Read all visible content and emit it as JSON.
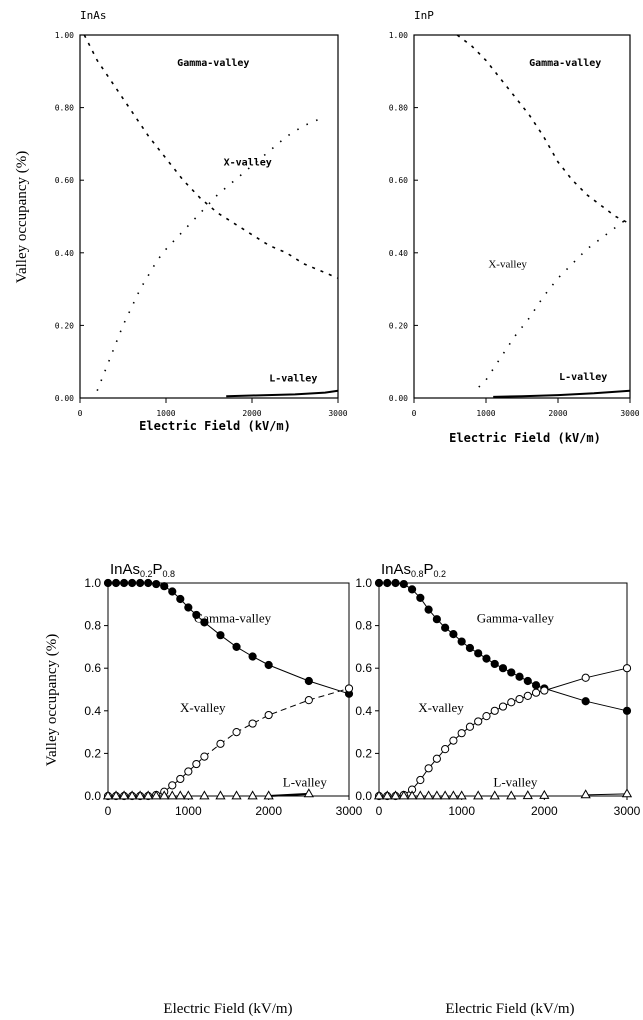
{
  "chart_data": [
    {
      "type": "line",
      "title": "InAs",
      "xlabel": "Electric Field (kV/m)",
      "ylabel": "Valley occupancy (%)",
      "xlim": [
        0,
        3000
      ],
      "ylim": [
        0,
        1
      ],
      "xticks": [
        0,
        1000,
        2000,
        3000
      ],
      "xtick_labels": [
        "0",
        "1000",
        "2000",
        "3000"
      ],
      "yticks": [
        0,
        0.2,
        0.4,
        0.6,
        0.8,
        1.0
      ],
      "ytick_labels": [
        "0.00",
        "0.20",
        "0.40",
        "0.60",
        "0.80",
        "1.00"
      ],
      "grid": false,
      "series": [
        {
          "name": "Gamma-valley",
          "style": "dashed",
          "x": [
            50,
            200,
            400,
            600,
            800,
            1000,
            1200,
            1400,
            1600,
            1800,
            2000,
            2200,
            2400,
            2600,
            2800,
            3000
          ],
          "y": [
            1.0,
            0.93,
            0.86,
            0.79,
            0.72,
            0.66,
            0.6,
            0.55,
            0.51,
            0.48,
            0.45,
            0.42,
            0.4,
            0.37,
            0.35,
            0.33
          ]
        },
        {
          "name": "X-valley",
          "style": "dotted",
          "x": [
            200,
            300,
            400,
            500,
            600,
            700,
            800,
            900,
            1000,
            1200,
            1400,
            1600,
            1800,
            2000,
            2200,
            2400,
            2600,
            2800
          ],
          "y": [
            0.02,
            0.08,
            0.14,
            0.2,
            0.25,
            0.3,
            0.34,
            0.38,
            0.41,
            0.46,
            0.51,
            0.56,
            0.6,
            0.64,
            0.68,
            0.72,
            0.75,
            0.77
          ]
        },
        {
          "name": "L-valley",
          "style": "solid",
          "x": [
            1700,
            2000,
            2500,
            2850,
            3000
          ],
          "y": [
            0.005,
            0.007,
            0.01,
            0.015,
            0.02
          ]
        }
      ],
      "annotations": [
        {
          "text": "Gamma-valley",
          "x": 1550,
          "y": 0.915
        },
        {
          "text": "X-valley",
          "x": 1950,
          "y": 0.64
        },
        {
          "text": "L-valley",
          "x": 2480,
          "y": 0.045
        }
      ]
    },
    {
      "type": "line",
      "title": "InP",
      "xlabel": "Electric Field (kV/m)",
      "ylabel": "",
      "xlim": [
        0,
        3000
      ],
      "ylim": [
        0,
        1
      ],
      "xticks": [
        0,
        1000,
        2000,
        3000
      ],
      "xtick_labels": [
        "0",
        "1000",
        "2000",
        "3000"
      ],
      "yticks": [
        0,
        0.2,
        0.4,
        0.6,
        0.8,
        1.0
      ],
      "ytick_labels": [
        "0.00",
        "0.20",
        "0.40",
        "0.60",
        "0.80",
        "1.00"
      ],
      "grid": false,
      "series": [
        {
          "name": "Gamma-valley",
          "style": "dashed",
          "x": [
            600,
            800,
            1000,
            1200,
            1400,
            1600,
            1800,
            2000,
            2200,
            2400,
            2600,
            2800,
            3000
          ],
          "y": [
            1.0,
            0.97,
            0.93,
            0.88,
            0.83,
            0.78,
            0.72,
            0.65,
            0.6,
            0.56,
            0.53,
            0.5,
            0.48
          ]
        },
        {
          "name": "X-valley",
          "style": "dotted",
          "x": [
            900,
            1000,
            1200,
            1400,
            1600,
            1800,
            2000,
            2200,
            2400,
            2600,
            2800,
            3000
          ],
          "y": [
            0.03,
            0.05,
            0.11,
            0.17,
            0.22,
            0.28,
            0.33,
            0.37,
            0.41,
            0.44,
            0.47,
            0.5
          ]
        },
        {
          "name": "L-valley",
          "style": "solid",
          "x": [
            1100,
            1500,
            2000,
            2500,
            3000
          ],
          "y": [
            0.003,
            0.005,
            0.008,
            0.013,
            0.02
          ]
        }
      ],
      "annotations": [
        {
          "text": "Gamma-valley",
          "x": 2100,
          "y": 0.915
        },
        {
          "text": "X-valley",
          "x": 1300,
          "y": 0.36
        },
        {
          "text": "L-valley",
          "x": 2350,
          "y": 0.05
        }
      ]
    },
    {
      "type": "line",
      "title": "InAs",
      "title_sub1": "0.2",
      "title_mid": "P",
      "title_sub2": "0.8",
      "xlabel": "Electric Field (kV/m)",
      "ylabel": "Valley occupancy (%)",
      "xlim": [
        0,
        3000
      ],
      "ylim": [
        0,
        1
      ],
      "xticks": [
        0,
        1000,
        2000,
        3000
      ],
      "xtick_labels": [
        "0",
        "1000",
        "2000",
        "3000"
      ],
      "yticks": [
        0,
        0.2,
        0.4,
        0.6,
        0.8,
        1.0
      ],
      "ytick_labels": [
        "0.0",
        "0.2",
        "0.4",
        "0.6",
        "0.8",
        "1.0"
      ],
      "grid": false,
      "series": [
        {
          "name": "Gamma-valley",
          "marker": "filled-circle",
          "line": "solid",
          "x": [
            0,
            100,
            200,
            300,
            400,
            500,
            600,
            700,
            800,
            900,
            1000,
            1100,
            1200,
            1400,
            1600,
            1800,
            2000,
            2500,
            3000
          ],
          "y": [
            1.0,
            1.0,
            1.0,
            1.0,
            1.0,
            1.0,
            0.995,
            0.985,
            0.96,
            0.925,
            0.885,
            0.85,
            0.815,
            0.755,
            0.7,
            0.655,
            0.615,
            0.54,
            0.48
          ]
        },
        {
          "name": "X-valley",
          "marker": "open-circle",
          "line": "dashed",
          "x": [
            0,
            100,
            200,
            300,
            400,
            500,
            600,
            700,
            800,
            900,
            1000,
            1100,
            1200,
            1400,
            1600,
            1800,
            2000,
            2500,
            3000
          ],
          "y": [
            0,
            0,
            0,
            0,
            0,
            0,
            0.005,
            0.02,
            0.05,
            0.08,
            0.115,
            0.15,
            0.185,
            0.245,
            0.3,
            0.34,
            0.38,
            0.45,
            0.505
          ]
        },
        {
          "name": "L-valley",
          "marker": "open-triangle",
          "line": "solid",
          "x": [
            0,
            100,
            200,
            300,
            400,
            500,
            600,
            700,
            800,
            900,
            1000,
            1200,
            1400,
            1600,
            1800,
            2000,
            2500
          ],
          "y": [
            0,
            0,
            0,
            0,
            0,
            0,
            0,
            0,
            0,
            0,
            0,
            0,
            0,
            0,
            0,
            0,
            0.01
          ]
        }
      ],
      "annotations": [
        {
          "text": "Gamma-valley",
          "x": 1550,
          "y": 0.815
        },
        {
          "text": "X-valley",
          "x": 1180,
          "y": 0.395
        },
        {
          "text": "L-valley",
          "x": 2450,
          "y": 0.045
        }
      ]
    },
    {
      "type": "line",
      "title": "InAs",
      "title_sub1": "0.8",
      "title_mid": "P",
      "title_sub2": "0.2",
      "xlabel": "Electric Field (kV/m)",
      "ylabel": "",
      "xlim": [
        0,
        3000
      ],
      "ylim": [
        0,
        1
      ],
      "xticks": [
        0,
        1000,
        2000,
        3000
      ],
      "xtick_labels": [
        "0",
        "1000",
        "2000",
        "3000"
      ],
      "yticks": [
        0,
        0.2,
        0.4,
        0.6,
        0.8,
        1.0
      ],
      "ytick_labels": [
        "0.0",
        "0.2",
        "0.4",
        "0.6",
        "0.8",
        "1.0"
      ],
      "grid": false,
      "series": [
        {
          "name": "Gamma-valley",
          "marker": "filled-circle",
          "line": "solid",
          "x": [
            0,
            100,
            200,
            300,
            400,
            500,
            600,
            700,
            800,
            900,
            1000,
            1100,
            1200,
            1300,
            1400,
            1500,
            1600,
            1700,
            1800,
            1900,
            2000,
            2500,
            3000
          ],
          "y": [
            1.0,
            1.0,
            1.0,
            0.995,
            0.97,
            0.93,
            0.875,
            0.83,
            0.79,
            0.76,
            0.725,
            0.695,
            0.67,
            0.645,
            0.62,
            0.6,
            0.58,
            0.56,
            0.54,
            0.52,
            0.505,
            0.445,
            0.4
          ]
        },
        {
          "name": "X-valley",
          "marker": "open-circle",
          "line": "solid",
          "x": [
            0,
            100,
            200,
            300,
            400,
            500,
            600,
            700,
            800,
            900,
            1000,
            1100,
            1200,
            1300,
            1400,
            1500,
            1600,
            1700,
            1800,
            1900,
            2000,
            2500,
            3000
          ],
          "y": [
            0,
            0,
            0,
            0.005,
            0.03,
            0.075,
            0.13,
            0.175,
            0.22,
            0.26,
            0.295,
            0.325,
            0.35,
            0.375,
            0.4,
            0.42,
            0.44,
            0.455,
            0.47,
            0.485,
            0.495,
            0.555,
            0.6
          ]
        },
        {
          "name": "L-valley",
          "marker": "open-triangle",
          "line": "solid",
          "x": [
            0,
            100,
            200,
            300,
            400,
            500,
            600,
            700,
            800,
            900,
            1000,
            1200,
            1400,
            1600,
            1800,
            2000,
            2500,
            3000
          ],
          "y": [
            0,
            0,
            0,
            0,
            0,
            0,
            0,
            0,
            0,
            0,
            0,
            0,
            0,
            0,
            0.001,
            0.002,
            0.005,
            0.01
          ]
        }
      ],
      "annotations": [
        {
          "text": "Gamma-valley",
          "x": 1650,
          "y": 0.815
        },
        {
          "text": "X-valley",
          "x": 750,
          "y": 0.395
        },
        {
          "text": "L-valley",
          "x": 1650,
          "y": 0.045
        }
      ]
    }
  ]
}
